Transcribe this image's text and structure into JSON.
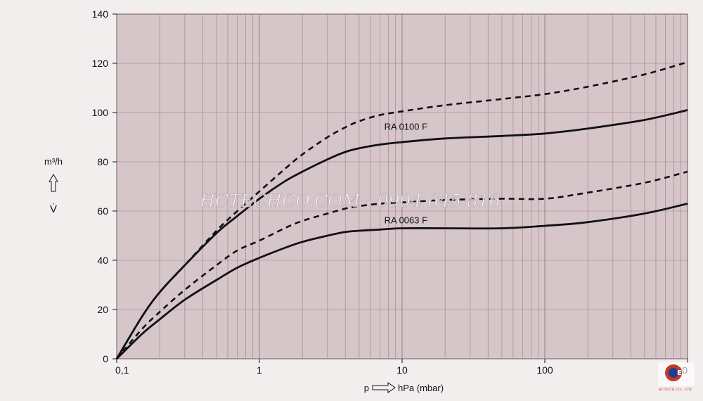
{
  "chart_data": {
    "type": "line",
    "x_scale": "log",
    "xlim": [
      0.1,
      1000
    ],
    "ylim": [
      0,
      140
    ],
    "x_ticks": [
      {
        "value": 0.1,
        "label": "0,1"
      },
      {
        "value": 1,
        "label": "1"
      },
      {
        "value": 10,
        "label": "10"
      },
      {
        "value": 100,
        "label": "100"
      },
      {
        "value": 1000,
        "label": "1000"
      }
    ],
    "y_ticks": [
      0,
      20,
      40,
      60,
      80,
      100,
      120,
      140
    ],
    "xlabel": {
      "left": "p",
      "right": "hPa (mbar)"
    },
    "ylabel": {
      "unit": "m³/h",
      "symbol": "V̇"
    },
    "grid": true,
    "colors": {
      "plot_bg": "#d6c6c9",
      "grid": "#9a7f86",
      "curve": "#111111",
      "page_bg": "#f2eeee"
    },
    "series": [
      {
        "name": "RA 0100 F",
        "style": "solid",
        "x": [
          0.1,
          0.15,
          0.2,
          0.3,
          0.5,
          0.7,
          1,
          1.5,
          2,
          3,
          4,
          5,
          7,
          10,
          20,
          50,
          100,
          200,
          500,
          1000
        ],
        "y": [
          0,
          17,
          27,
          38,
          51,
          58,
          65,
          72,
          76,
          81,
          84,
          85.5,
          87,
          88,
          89.5,
          90.5,
          91.5,
          93.5,
          97,
          101
        ]
      },
      {
        "name": "RA 0100 F (dashed)",
        "style": "dashed",
        "x": [
          0.1,
          0.15,
          0.2,
          0.3,
          0.5,
          0.7,
          1,
          1.5,
          2,
          3,
          4,
          5,
          7,
          10,
          20,
          50,
          100,
          200,
          500,
          1000
        ],
        "y": [
          0,
          17,
          27,
          38,
          52,
          60,
          68,
          77,
          83,
          90,
          94,
          96.5,
          99,
          100.5,
          103,
          105.5,
          107.5,
          110.5,
          115.5,
          120.5
        ]
      },
      {
        "name": "RA 0063 F",
        "style": "solid",
        "x": [
          0.1,
          0.15,
          0.2,
          0.3,
          0.5,
          0.7,
          1,
          1.5,
          2,
          3,
          4,
          5,
          7,
          10,
          20,
          50,
          100,
          200,
          500,
          1000
        ],
        "y": [
          0,
          10,
          16,
          24,
          32,
          37,
          41,
          45,
          47.5,
          50,
          51.5,
          52,
          52.5,
          53,
          53,
          53,
          54,
          55.5,
          59,
          63
        ]
      },
      {
        "name": "RA 0063 F (dashed)",
        "style": "dashed",
        "x": [
          0.1,
          0.15,
          0.2,
          0.3,
          0.5,
          0.7,
          1,
          1.5,
          2,
          3,
          4,
          5,
          7,
          10,
          20,
          50,
          100,
          200,
          500,
          1000
        ],
        "y": [
          0,
          12,
          19,
          28,
          38,
          44,
          48,
          53,
          56,
          59,
          61,
          62,
          63,
          63.5,
          64.5,
          65,
          65,
          67.5,
          71.5,
          76
        ]
      }
    ],
    "annotations": [
      {
        "text": "RA 0100 F",
        "x": 7.5,
        "y": 93
      },
      {
        "text": "RA 0063 F",
        "x": 7.5,
        "y": 55
      }
    ]
  },
  "watermark": "HCTECHCO.COM - 0904 645 816",
  "logo": {
    "text": "HCTECH CO., LTD",
    "color": "#c0392b"
  }
}
